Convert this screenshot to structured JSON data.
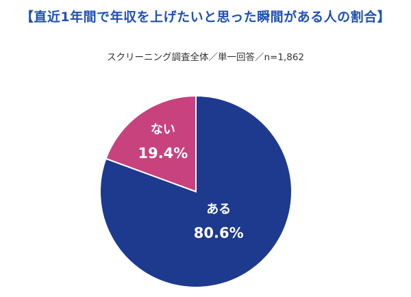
{
  "chart_data": {
    "type": "pie",
    "title": "【直近1年間で年収を上げたいと思った瞬間がある人の割合】",
    "subtitle": "スクリーニング調査全体／単一回答／n=1,862",
    "start": "12 o'clock",
    "direction": "clockwise",
    "slices": [
      {
        "label": "ある",
        "value": 80.6,
        "value_label": "80.6%",
        "color": "#1d3a8f"
      },
      {
        "label": "ない",
        "value": 19.4,
        "value_label": "19.4%",
        "color": "#c8427e"
      }
    ],
    "legend": "none"
  }
}
